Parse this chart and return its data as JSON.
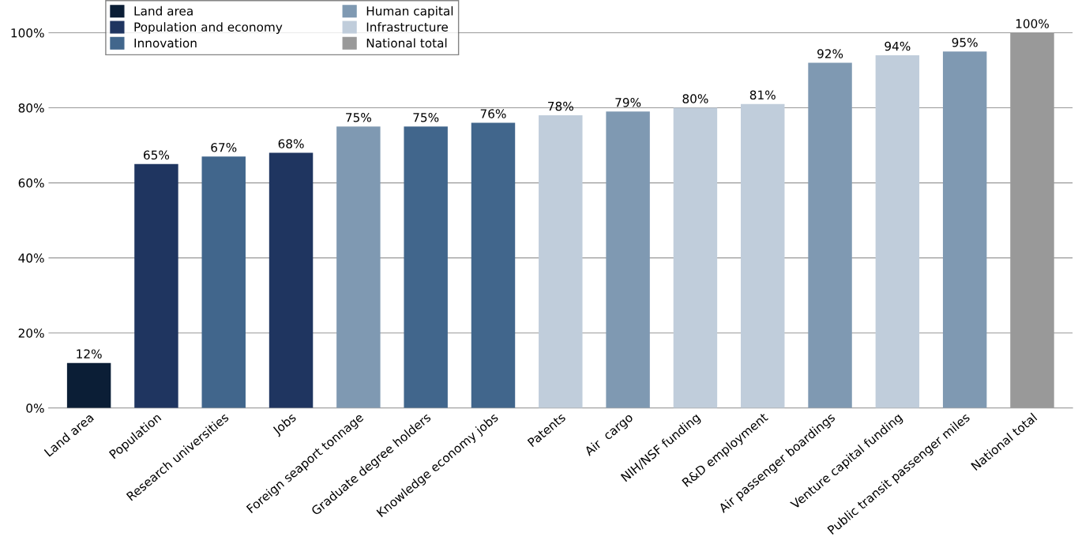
{
  "chart_data": {
    "type": "bar",
    "categories": [
      "Land area",
      "Population",
      "Research universities",
      "Jobs",
      "Foreign seaport tonnage",
      "Graduate degree holders",
      "Knowledge economy jobs",
      "Patents",
      "Air  cargo",
      "NIH/NSF funding",
      "R&D employment",
      "Air passenger boardings",
      "Venture capital funding",
      "Public transit passenger miles",
      "National total"
    ],
    "series": [
      {
        "name": "Land area",
        "color": "#0b1e36",
        "values": [
          12,
          null,
          null,
          null,
          null,
          null,
          null,
          null,
          null,
          null,
          null,
          null,
          null,
          null,
          null
        ],
        "value_labels": [
          "12%",
          null,
          null,
          null,
          null,
          null,
          null,
          null,
          null,
          null,
          null,
          null,
          null,
          null,
          null
        ]
      },
      {
        "name": "Population and economy",
        "color": "#1f3560",
        "values": [
          null,
          65,
          null,
          68,
          null,
          null,
          null,
          null,
          null,
          null,
          null,
          null,
          null,
          null,
          null
        ],
        "value_labels": [
          null,
          "65%",
          null,
          "68%",
          null,
          null,
          null,
          null,
          null,
          null,
          null,
          null,
          null,
          null,
          null
        ]
      },
      {
        "name": "Innovation",
        "color": "#41668c",
        "values": [
          null,
          null,
          67,
          null,
          null,
          75,
          76,
          null,
          null,
          null,
          null,
          null,
          null,
          null,
          null
        ],
        "value_labels": [
          null,
          null,
          "67%",
          null,
          null,
          "75%",
          "76%",
          null,
          null,
          null,
          null,
          null,
          null,
          null,
          null
        ]
      },
      {
        "name": "Human capital",
        "color": "#7f99b2",
        "values": [
          null,
          null,
          null,
          null,
          75,
          null,
          null,
          null,
          79,
          null,
          null,
          92,
          null,
          95,
          null
        ],
        "value_labels": [
          null,
          null,
          null,
          null,
          "75%",
          null,
          null,
          null,
          "79%",
          null,
          null,
          "92%",
          null,
          "95%",
          null
        ]
      },
      {
        "name": "Infrastructure",
        "color": "#c0cddb",
        "values": [
          null,
          null,
          null,
          null,
          null,
          null,
          null,
          78,
          null,
          80,
          81,
          null,
          94,
          null,
          null
        ],
        "value_labels": [
          null,
          null,
          null,
          null,
          null,
          null,
          null,
          "78%",
          null,
          "80%",
          "81%",
          null,
          "94%",
          null,
          null
        ]
      },
      {
        "name": "National total",
        "color": "#999999",
        "values": [
          null,
          null,
          null,
          null,
          null,
          null,
          null,
          null,
          null,
          null,
          null,
          null,
          null,
          null,
          100
        ],
        "value_labels": [
          null,
          null,
          null,
          null,
          null,
          null,
          null,
          null,
          null,
          null,
          null,
          null,
          null,
          null,
          "100%"
        ]
      }
    ],
    "ylim": [
      0,
      108
    ],
    "yticks": [
      {
        "value": 0,
        "label": "0%"
      },
      {
        "value": 20,
        "label": "20%"
      },
      {
        "value": 40,
        "label": "40%"
      },
      {
        "value": 60,
        "label": "60%"
      },
      {
        "value": 80,
        "label": "80%"
      },
      {
        "value": 100,
        "label": "100%"
      }
    ],
    "grid": "y",
    "legend": "top left"
  }
}
